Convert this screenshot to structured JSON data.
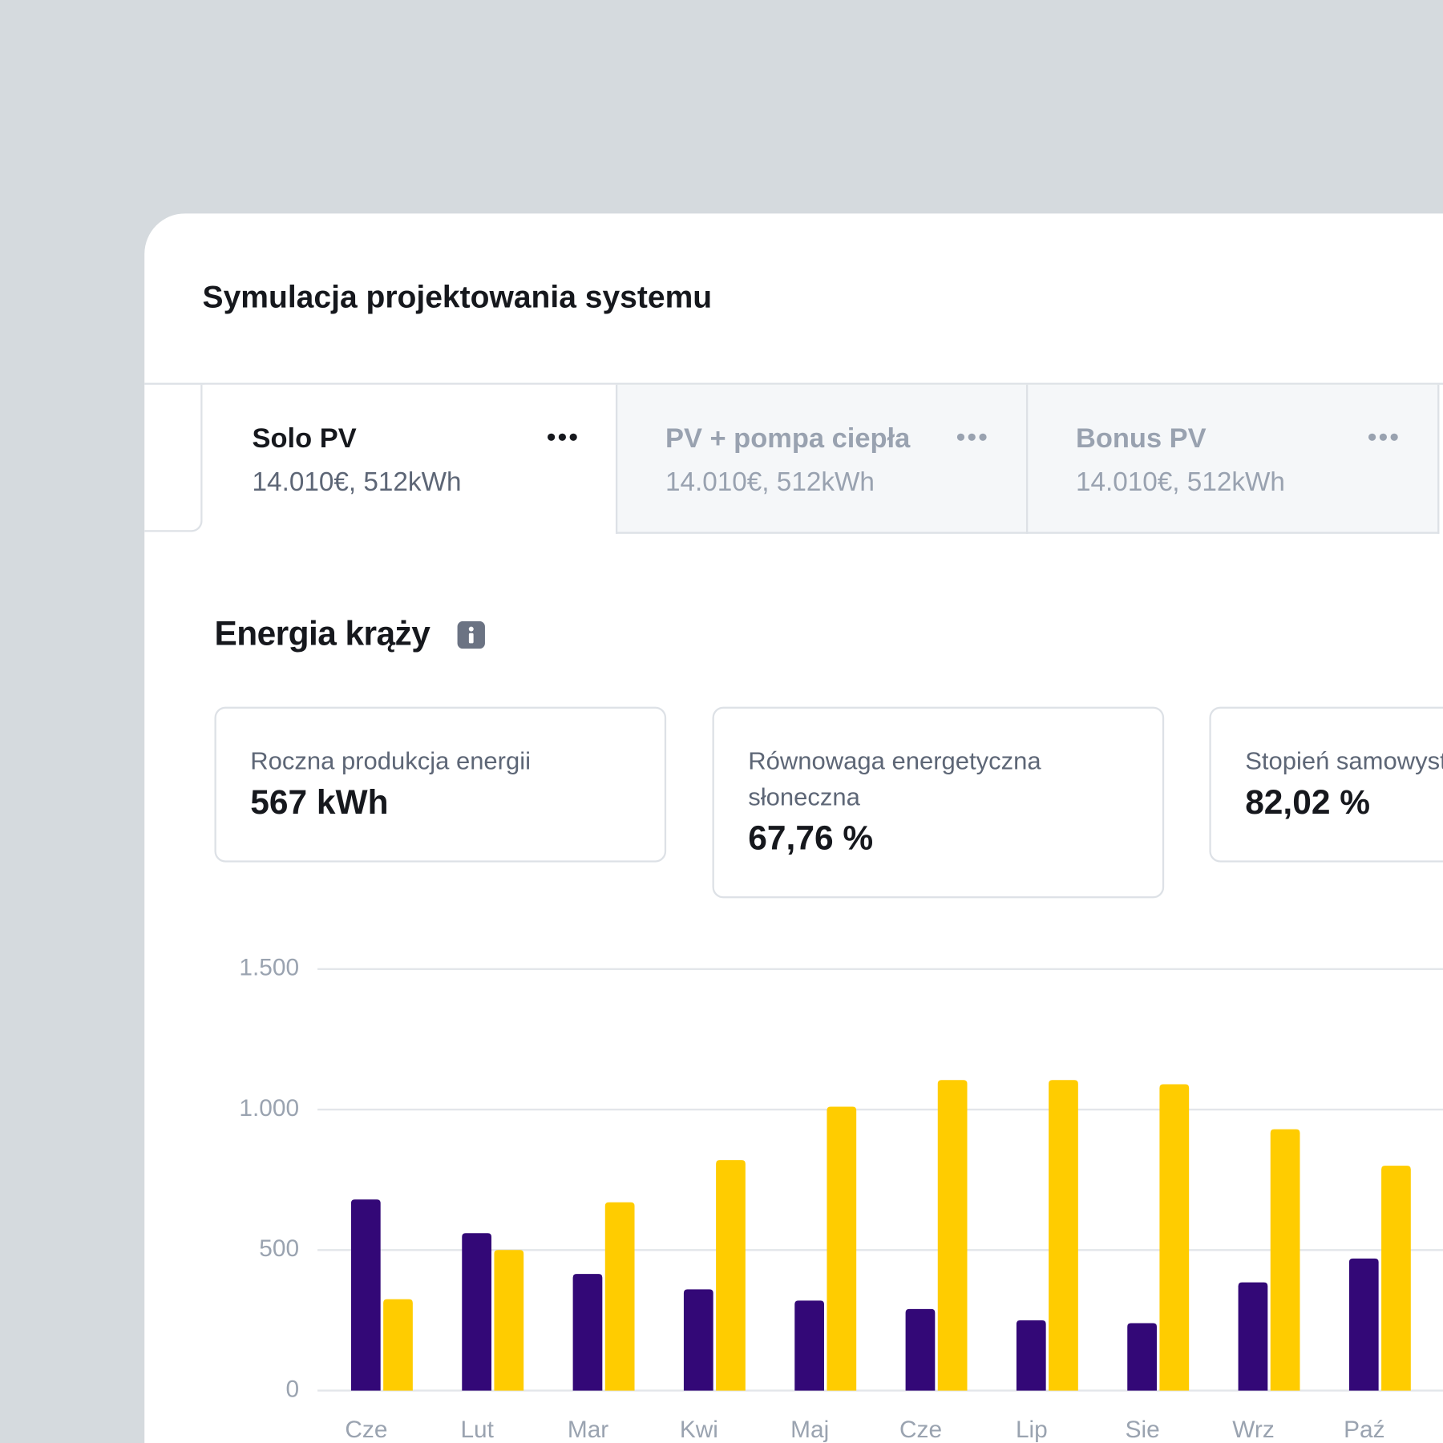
{
  "header": {
    "title": "Symulacja projektowania systemu"
  },
  "tabs": [
    {
      "title": "Solo PV",
      "subtitle": "14.010€, 512kWh"
    },
    {
      "title": "PV + pompa ciepła",
      "subtitle": "14.010€, 512kWh"
    },
    {
      "title": "Bonus PV",
      "subtitle": "14.010€, 512kWh"
    }
  ],
  "section": {
    "title": "Energia krąży"
  },
  "stats": [
    {
      "label": "Roczna produkcja energii",
      "value": "567 kWh"
    },
    {
      "label": "Równowaga energetyczna słoneczna",
      "value": "67,76 %"
    },
    {
      "label": "Stopień samowystarczalności",
      "value": "82,02 %"
    }
  ],
  "chart_data": {
    "type": "bar",
    "categories": [
      "Cze",
      "Lut",
      "Mar",
      "Kwi",
      "Maj",
      "Cze",
      "Lip",
      "Sie",
      "Wrz",
      "Paź"
    ],
    "series": [
      {
        "color": "#330877",
        "values": [
          680,
          560,
          415,
          360,
          320,
          290,
          250,
          240,
          385,
          470
        ]
      },
      {
        "color": "#ffcc00",
        "values": [
          325,
          500,
          670,
          820,
          1010,
          1105,
          1105,
          1090,
          930,
          800
        ]
      }
    ],
    "ylim": [
      0,
      1500
    ],
    "yticks": [
      0,
      500,
      {
        "value": 1000,
        "label": "1.000"
      },
      {
        "value": 1500,
        "label": "1.500"
      }
    ],
    "grid": true
  }
}
